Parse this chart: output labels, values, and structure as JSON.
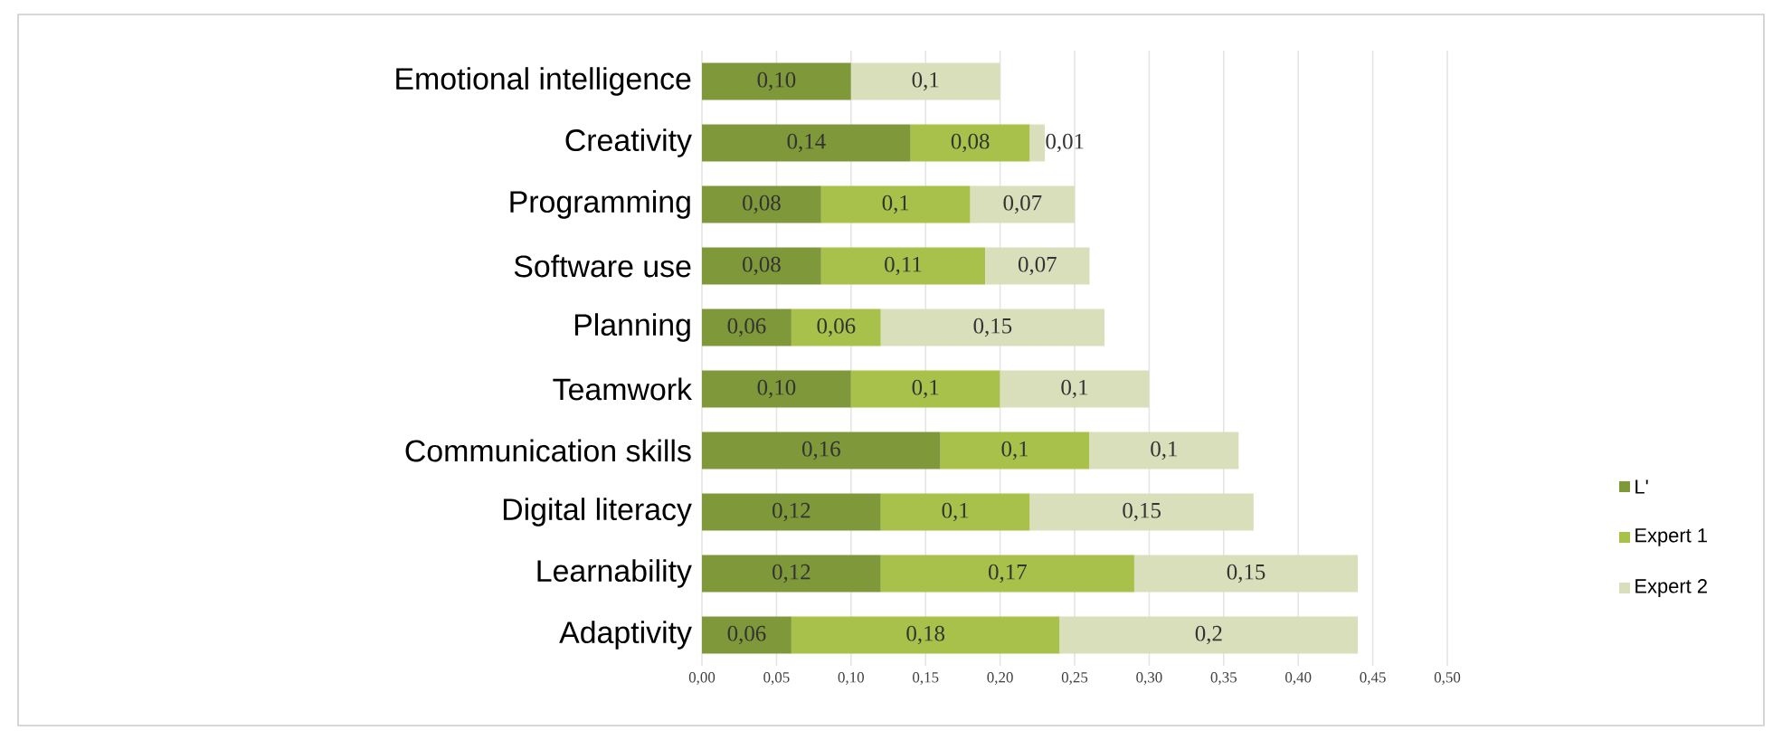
{
  "chart_data": {
    "type": "bar",
    "orientation": "horizontal",
    "stacked": true,
    "categories": [
      "Emotional intelligence",
      "Creativity",
      "Programming",
      "Software use",
      "Planning",
      "Teamwork",
      "Communication skills",
      "Digital literacy",
      "Learnability",
      "Adaptivity"
    ],
    "series": [
      {
        "name": "L'",
        "color": "#7f983a",
        "values": [
          0.1,
          0.14,
          0.08,
          0.08,
          0.06,
          0.1,
          0.16,
          0.12,
          0.12,
          0.06
        ],
        "value_labels": [
          "0,10",
          "0,14",
          "0,08",
          "0,08",
          "0,06",
          "0,10",
          "0,16",
          "0,12",
          "0,12",
          "0,06"
        ]
      },
      {
        "name": "Expert 1",
        "color": "#a8c14a",
        "values": [
          null,
          0.08,
          0.1,
          0.11,
          0.06,
          0.1,
          0.1,
          0.1,
          0.17,
          0.18
        ],
        "value_labels": [
          null,
          "0,08",
          "0,1",
          "0,11",
          "0,06",
          "0,1",
          "0,1",
          "0,1",
          "0,17",
          "0,18"
        ]
      },
      {
        "name": "Expert 2",
        "color": "#d9dfba",
        "values": [
          0.1,
          0.01,
          0.07,
          0.07,
          0.15,
          0.1,
          0.1,
          0.15,
          0.15,
          0.2
        ],
        "value_labels": [
          "0,1",
          "0,01",
          "0,07",
          "0,07",
          "0,15",
          "0,1",
          "0,1",
          "0,15",
          "0,15",
          "0,2"
        ]
      }
    ],
    "xlim": [
      0,
      0.5
    ],
    "xticks": [
      {
        "value": 0,
        "label": "0,00"
      },
      {
        "value": 0.05,
        "label": "0,05"
      },
      {
        "value": 0.1,
        "label": "0,10"
      },
      {
        "value": 0.15,
        "label": "0,15"
      },
      {
        "value": 0.2,
        "label": "0,20"
      },
      {
        "value": 0.25,
        "label": "0,25"
      },
      {
        "value": 0.3,
        "label": "0,30"
      },
      {
        "value": 0.35,
        "label": "0,35"
      },
      {
        "value": 0.4,
        "label": "0,40"
      },
      {
        "value": 0.45,
        "label": "0,45"
      },
      {
        "value": 0.5,
        "label": "0,50"
      }
    ],
    "grid": "x",
    "legend": "right"
  }
}
